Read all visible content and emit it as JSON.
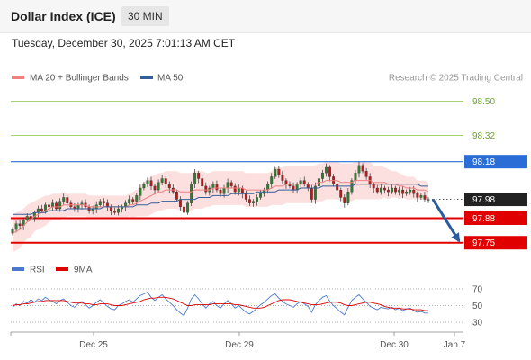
{
  "header": {
    "title": "Dollar Index (ICE)",
    "timeframe": "30 MIN",
    "datetime": "Tuesday, December 30, 2025 7:01:13 AM CET"
  },
  "credit": "Research © 2025 Trading Central",
  "colors": {
    "price_up": "#2e7d32",
    "price_down": "#b71c1c",
    "ma20": "#f08080",
    "ma50": "#345e9a",
    "bollinger_fill": "#fbdada",
    "resistance": "#8bc34a",
    "pivot": "#2a6dd6",
    "support": "#e00000",
    "current": "#222222",
    "arrow": "#2a5d9e",
    "rsi": "#4a78d0",
    "rsi_ma": "#e00000"
  },
  "chart_data": [
    {
      "type": "candlestick",
      "legend": [
        {
          "label": "MA 20 + Bollinger Bands",
          "color": "#f08080"
        },
        {
          "label": "MA 50",
          "color": "#345e9a"
        }
      ],
      "ylim": [
        97.72,
        98.57
      ],
      "x_ticks": [
        "Dec 25",
        "Dec 29",
        "Dec 30",
        "Jan 7"
      ],
      "levels": [
        {
          "label": "98.50",
          "value": 98.5,
          "kind": "resistance"
        },
        {
          "label": "98.32",
          "value": 98.32,
          "kind": "resistance"
        },
        {
          "label": "98.18",
          "value": 98.18,
          "kind": "pivot"
        },
        {
          "label": "97.98",
          "value": 97.98,
          "kind": "current"
        },
        {
          "label": "97.88",
          "value": 97.88,
          "kind": "support"
        },
        {
          "label": "97.75",
          "value": 97.75,
          "kind": "support"
        }
      ],
      "forecast_arrow": {
        "from": 97.98,
        "to": 97.75
      },
      "close": [
        97.82,
        97.85,
        97.84,
        97.87,
        97.89,
        97.88,
        97.91,
        97.93,
        97.92,
        97.95,
        97.94,
        97.96,
        97.93,
        97.97,
        97.99,
        97.96,
        97.94,
        97.93,
        97.95,
        97.96,
        97.94,
        97.92,
        97.93,
        97.95,
        97.97,
        97.96,
        97.94,
        97.92,
        97.91,
        97.93,
        97.94,
        97.96,
        97.98,
        97.97,
        98.0,
        98.04,
        98.06,
        98.08,
        98.05,
        98.03,
        98.07,
        98.09,
        98.06,
        98.04,
        98.02,
        97.98,
        97.94,
        97.91,
        97.96,
        98.06,
        98.12,
        98.09,
        98.05,
        98.02,
        98.04,
        98.06,
        98.03,
        98.01,
        98.04,
        98.07,
        98.05,
        98.02,
        98.04,
        98.01,
        97.98,
        97.96,
        97.97,
        97.99,
        98.01,
        98.03,
        98.06,
        98.1,
        98.14,
        98.11,
        98.08,
        98.06,
        98.05,
        98.03,
        98.06,
        98.08,
        98.06,
        98.04,
        97.98,
        98.05,
        98.09,
        98.12,
        98.15,
        98.1,
        98.06,
        98.03,
        97.99,
        97.96,
        98.02,
        98.08,
        98.12,
        98.16,
        98.13,
        98.1,
        98.06,
        98.04,
        98.02,
        98.04,
        98.03,
        98.02,
        98.04,
        98.02,
        98.03,
        98.01,
        98.02,
        98.03,
        98.01,
        97.99,
        98.0,
        97.98,
        97.98
      ],
      "ma20": [
        97.8,
        97.81,
        97.82,
        97.84,
        97.86,
        97.87,
        97.89,
        97.9,
        97.91,
        97.92,
        97.93,
        97.94,
        97.94,
        97.94,
        97.95,
        97.95,
        97.95,
        97.95,
        97.95,
        97.95,
        97.95,
        97.94,
        97.94,
        97.94,
        97.94,
        97.94,
        97.94,
        97.94,
        97.94,
        97.94,
        97.94,
        97.94,
        97.95,
        97.95,
        97.96,
        97.97,
        97.98,
        97.99,
        98.0,
        98.01,
        98.02,
        98.02,
        98.03,
        98.03,
        98.03,
        98.03,
        98.02,
        98.02,
        98.02,
        98.02,
        98.03,
        98.03,
        98.03,
        98.03,
        98.03,
        98.04,
        98.04,
        98.04,
        98.04,
        98.04,
        98.04,
        98.04,
        98.04,
        98.04,
        98.03,
        98.03,
        98.03,
        98.03,
        98.03,
        98.03,
        98.03,
        98.04,
        98.05,
        98.05,
        98.05,
        98.06,
        98.06,
        98.06,
        98.06,
        98.06,
        98.06,
        98.06,
        98.06,
        98.06,
        98.07,
        98.07,
        98.08,
        98.08,
        98.08,
        98.08,
        98.07,
        98.07,
        98.07,
        98.07,
        98.08,
        98.08,
        98.08,
        98.08,
        98.08,
        98.07,
        98.07,
        98.07,
        98.07,
        98.06,
        98.06,
        98.06,
        98.05,
        98.05,
        98.04,
        98.04,
        98.04,
        98.03,
        98.03,
        98.03,
        98.02
      ],
      "ma50": [
        97.9,
        97.9,
        97.9,
        97.9,
        97.9,
        97.9,
        97.91,
        97.91,
        97.91,
        97.91,
        97.92,
        97.92,
        97.92,
        97.92,
        97.92,
        97.93,
        97.93,
        97.93,
        97.93,
        97.93,
        97.93,
        97.93,
        97.93,
        97.93,
        97.93,
        97.94,
        97.94,
        97.94,
        97.94,
        97.94,
        97.94,
        97.94,
        97.94,
        97.94,
        97.95,
        97.95,
        97.95,
        97.95,
        97.96,
        97.96,
        97.96,
        97.97,
        97.97,
        97.97,
        97.97,
        97.97,
        97.98,
        97.98,
        97.98,
        97.98,
        97.98,
        97.99,
        97.99,
        97.99,
        97.99,
        98.0,
        98.0,
        98.0,
        98.0,
        98.0,
        98.01,
        98.01,
        98.01,
        98.01,
        98.01,
        98.01,
        98.01,
        98.02,
        98.02,
        98.02,
        98.02,
        98.02,
        98.02,
        98.03,
        98.03,
        98.03,
        98.03,
        98.03,
        98.03,
        98.04,
        98.04,
        98.04,
        98.04,
        98.04,
        98.04,
        98.05,
        98.05,
        98.05,
        98.05,
        98.05,
        98.05,
        98.05,
        98.05,
        98.05,
        98.06,
        98.06,
        98.06,
        98.06,
        98.06,
        98.06,
        98.06,
        98.06,
        98.06,
        98.06,
        98.06,
        98.06,
        98.06,
        98.06,
        98.06,
        98.06,
        98.06,
        98.06,
        98.05,
        98.05,
        98.05
      ],
      "bb_width": [
        0.1,
        0.1,
        0.1,
        0.09,
        0.09,
        0.09,
        0.08,
        0.08,
        0.08,
        0.08,
        0.07,
        0.07,
        0.07,
        0.07,
        0.07,
        0.06,
        0.06,
        0.06,
        0.06,
        0.06,
        0.06,
        0.06,
        0.06,
        0.06,
        0.06,
        0.06,
        0.06,
        0.06,
        0.06,
        0.06,
        0.06,
        0.06,
        0.06,
        0.07,
        0.07,
        0.08,
        0.09,
        0.1,
        0.1,
        0.1,
        0.1,
        0.1,
        0.1,
        0.1,
        0.1,
        0.1,
        0.1,
        0.1,
        0.1,
        0.1,
        0.1,
        0.1,
        0.1,
        0.09,
        0.09,
        0.09,
        0.09,
        0.09,
        0.09,
        0.09,
        0.09,
        0.09,
        0.09,
        0.09,
        0.09,
        0.09,
        0.09,
        0.09,
        0.09,
        0.09,
        0.09,
        0.09,
        0.1,
        0.1,
        0.1,
        0.1,
        0.1,
        0.1,
        0.1,
        0.1,
        0.1,
        0.1,
        0.1,
        0.1,
        0.1,
        0.1,
        0.1,
        0.1,
        0.1,
        0.1,
        0.1,
        0.1,
        0.1,
        0.1,
        0.1,
        0.1,
        0.1,
        0.1,
        0.1,
        0.09,
        0.09,
        0.09,
        0.08,
        0.08,
        0.07,
        0.07,
        0.07,
        0.06,
        0.06,
        0.06,
        0.06,
        0.05,
        0.05,
        0.05,
        0.05
      ]
    },
    {
      "type": "line",
      "legend": [
        {
          "label": "RSI",
          "color": "#4a78d0"
        },
        {
          "label": "9MA",
          "color": "#e00000"
        }
      ],
      "ylim": [
        25,
        75
      ],
      "y_ticks": [
        "70",
        "50",
        "30"
      ],
      "rsi": [
        48,
        52,
        50,
        55,
        53,
        57,
        54,
        58,
        56,
        60,
        57,
        55,
        52,
        56,
        58,
        54,
        50,
        48,
        52,
        55,
        51,
        47,
        50,
        54,
        57,
        53,
        49,
        46,
        45,
        50,
        52,
        55,
        57,
        54,
        58,
        62,
        64,
        66,
        60,
        56,
        60,
        63,
        58,
        54,
        50,
        45,
        41,
        38,
        47,
        58,
        63,
        58,
        52,
        47,
        52,
        55,
        50,
        47,
        52,
        56,
        52,
        47,
        50,
        46,
        42,
        40,
        43,
        47,
        51,
        54,
        58,
        62,
        64,
        59,
        55,
        52,
        50,
        48,
        52,
        55,
        52,
        49,
        42,
        51,
        56,
        60,
        62,
        55,
        50,
        46,
        42,
        39,
        48,
        56,
        60,
        63,
        58,
        54,
        49,
        47,
        45,
        48,
        47,
        46,
        48,
        45,
        47,
        44,
        46,
        47,
        44,
        42,
        43,
        41,
        41
      ],
      "rsi_ma": [
        50,
        51,
        51,
        52,
        52,
        53,
        54,
        55,
        55,
        56,
        56,
        56,
        56,
        56,
        56,
        55,
        54,
        53,
        53,
        53,
        52,
        52,
        51,
        51,
        52,
        52,
        52,
        51,
        50,
        50,
        50,
        51,
        52,
        53,
        54,
        55,
        57,
        58,
        59,
        59,
        60,
        60,
        60,
        59,
        58,
        56,
        54,
        52,
        50,
        50,
        51,
        51,
        51,
        51,
        51,
        52,
        52,
        52,
        52,
        52,
        52,
        51,
        51,
        50,
        49,
        48,
        47,
        47,
        47,
        48,
        50,
        52,
        54,
        56,
        57,
        57,
        57,
        56,
        55,
        54,
        53,
        52,
        51,
        51,
        51,
        52,
        53,
        54,
        54,
        54,
        53,
        51,
        50,
        50,
        51,
        52,
        53,
        54,
        54,
        53,
        52,
        51,
        49,
        48,
        47,
        47,
        47,
        46,
        46,
        46,
        45,
        45,
        45,
        44,
        44
      ]
    }
  ]
}
